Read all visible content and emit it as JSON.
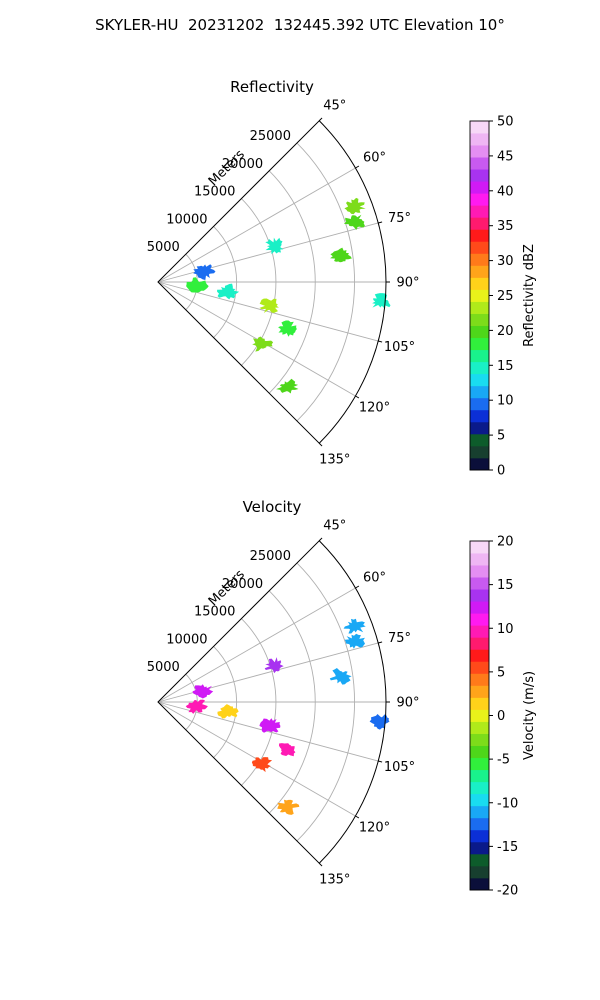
{
  "figure": {
    "title": "SKYLER-HU  20231202  132445.392 UTC Elevation 10°"
  },
  "chart_data": [
    {
      "type": "heatmap",
      "projection": "polar-sector",
      "title": "Reflectivity",
      "radial_label": "Meters",
      "radial_ticks": [
        5000,
        10000,
        15000,
        20000,
        25000
      ],
      "radial_range": [
        0,
        29000
      ],
      "angle_range_deg": [
        45,
        135
      ],
      "angle_ticks": [
        "45°",
        "60°",
        "75°",
        "90°",
        "105°",
        "120°",
        "135°"
      ],
      "grid": true,
      "colorbar": {
        "label": "Reflectivity dBZ",
        "range": [
          0,
          50
        ],
        "ticks": [
          0,
          5,
          10,
          15,
          20,
          25,
          30,
          35,
          40,
          45,
          50
        ],
        "colors": [
          "#0b0f3a",
          "#173f2f",
          "#0d5c2b",
          "#0a1a8a",
          "#0b2fd6",
          "#1a6cf0",
          "#19a8f5",
          "#19dcf0",
          "#19f0c6",
          "#19f28c",
          "#31ef3c",
          "#4ed61a",
          "#7ddc1a",
          "#b0ea1a",
          "#e8f21a",
          "#ffd21a",
          "#ffa41a",
          "#ff7a1a",
          "#ff4a1a",
          "#ff1a1a",
          "#ff1a6e",
          "#ff1ab4",
          "#ff1af0",
          "#d01af5",
          "#a833f0",
          "#c85af0",
          "#e48ef2",
          "#efb6f4",
          "#f7d8f7"
        ]
      },
      "echoes": [
        {
          "range_km": 26.8,
          "azimuth_deg": 69,
          "value": 22
        },
        {
          "range_km": 26.2,
          "azimuth_deg": 73,
          "value": 20
        },
        {
          "range_km": 23.5,
          "azimuth_deg": 82,
          "value": 20
        },
        {
          "range_km": 28.5,
          "azimuth_deg": 95,
          "value": 14
        },
        {
          "range_km": 15.6,
          "azimuth_deg": 73,
          "value": 14
        },
        {
          "range_km": 14.6,
          "azimuth_deg": 102,
          "value": 24
        },
        {
          "range_km": 9.0,
          "azimuth_deg": 98,
          "value": 14
        },
        {
          "range_km": 17.5,
          "azimuth_deg": 110,
          "value": 18
        },
        {
          "range_km": 15.4,
          "azimuth_deg": 121,
          "value": 22
        },
        {
          "range_km": 21.2,
          "azimuth_deg": 129,
          "value": 20
        },
        {
          "range_km": 5.0,
          "azimuth_deg": 96,
          "value": 18
        },
        {
          "range_km": 6.0,
          "azimuth_deg": 77,
          "value": 10
        }
      ]
    },
    {
      "type": "heatmap",
      "projection": "polar-sector",
      "title": "Velocity",
      "radial_label": "Meters",
      "radial_ticks": [
        5000,
        10000,
        15000,
        20000,
        25000
      ],
      "radial_range": [
        0,
        29000
      ],
      "angle_range_deg": [
        45,
        135
      ],
      "angle_ticks": [
        "45°",
        "60°",
        "75°",
        "90°",
        "105°",
        "120°",
        "135°"
      ],
      "grid": true,
      "colorbar": {
        "label": "Velocity (m/s)",
        "range": [
          -20,
          20
        ],
        "ticks": [
          -20,
          -15,
          -10,
          -5,
          0,
          5,
          10,
          15,
          20
        ],
        "colors": [
          "#0b0f3a",
          "#173f2f",
          "#0d5c2b",
          "#0a1a8a",
          "#0b2fd6",
          "#1a6cf0",
          "#19a8f5",
          "#19dcf0",
          "#19f0c6",
          "#19f28c",
          "#31ef3c",
          "#4ed61a",
          "#7ddc1a",
          "#b0ea1a",
          "#e8f21a",
          "#ffd21a",
          "#ffa41a",
          "#ff7a1a",
          "#ff4a1a",
          "#ff1a1a",
          "#ff1a6e",
          "#ff1ab4",
          "#ff1af0",
          "#d01af5",
          "#a833f0",
          "#c85af0",
          "#e48ef2",
          "#efb6f4",
          "#f7d8f7"
        ]
      },
      "echoes": [
        {
          "range_km": 26.8,
          "azimuth_deg": 69,
          "value": -11
        },
        {
          "range_km": 26.2,
          "azimuth_deg": 73,
          "value": -11
        },
        {
          "range_km": 23.5,
          "azimuth_deg": 82,
          "value": -11
        },
        {
          "range_km": 28.5,
          "azimuth_deg": 95,
          "value": -13
        },
        {
          "range_km": 15.6,
          "azimuth_deg": 73,
          "value": 14
        },
        {
          "range_km": 14.6,
          "azimuth_deg": 102,
          "value": 13
        },
        {
          "range_km": 9.0,
          "azimuth_deg": 98,
          "value": 2
        },
        {
          "range_km": 17.5,
          "azimuth_deg": 110,
          "value": 9
        },
        {
          "range_km": 15.4,
          "azimuth_deg": 121,
          "value": 5
        },
        {
          "range_km": 21.2,
          "azimuth_deg": 129,
          "value": 3
        },
        {
          "range_km": 5.0,
          "azimuth_deg": 96,
          "value": 9
        },
        {
          "range_km": 6.0,
          "azimuth_deg": 77,
          "value": 12
        }
      ]
    }
  ]
}
